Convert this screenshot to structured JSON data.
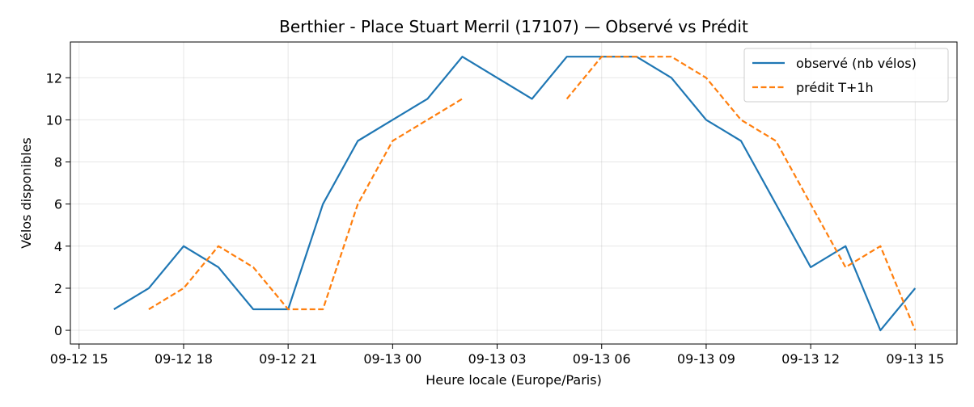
{
  "chart_data": {
    "type": "line",
    "title": "Berthier - Place Stuart Merril (17107) — Observé vs Prédit",
    "xlabel": "Heure locale (Europe/Paris)",
    "ylabel": "Vélos disponibles",
    "x_ticks": [
      {
        "hour": 15,
        "label": "09-12 15"
      },
      {
        "hour": 18,
        "label": "09-12 18"
      },
      {
        "hour": 21,
        "label": "09-12 21"
      },
      {
        "hour": 24,
        "label": "09-13 00"
      },
      {
        "hour": 27,
        "label": "09-13 03"
      },
      {
        "hour": 30,
        "label": "09-13 06"
      },
      {
        "hour": 33,
        "label": "09-13 09"
      },
      {
        "hour": 36,
        "label": "09-13 12"
      },
      {
        "hour": 39,
        "label": "09-13 15"
      }
    ],
    "y_ticks": [
      0,
      2,
      4,
      6,
      8,
      10,
      12
    ],
    "xlim": [
      14.75,
      40.2
    ],
    "ylim": [
      -0.65,
      13.7
    ],
    "grid": true,
    "legend_position": "top-right",
    "series": [
      {
        "name": "observé (nb vélos)",
        "color": "#1f77b4",
        "style": "solid",
        "points": [
          [
            16,
            1
          ],
          [
            17,
            2
          ],
          [
            18,
            4
          ],
          [
            19,
            3
          ],
          [
            20,
            1
          ],
          [
            21,
            1
          ],
          [
            22,
            6
          ],
          [
            23,
            9
          ],
          [
            24,
            10
          ],
          [
            25,
            11
          ],
          [
            26,
            13
          ],
          [
            27,
            12
          ],
          [
            28,
            11
          ],
          [
            29,
            13
          ],
          [
            30,
            13
          ],
          [
            31,
            13
          ],
          [
            32,
            12
          ],
          [
            33,
            10
          ],
          [
            34,
            9
          ],
          [
            35,
            6
          ],
          [
            36,
            3
          ],
          [
            37,
            4
          ],
          [
            38,
            0
          ],
          [
            39,
            2
          ]
        ]
      },
      {
        "name": "prédit T+1h",
        "color": "#ff7f0e",
        "style": "dashed",
        "points": [
          [
            17,
            1
          ],
          [
            18,
            2
          ],
          [
            19,
            4
          ],
          [
            20,
            3
          ],
          [
            21,
            1
          ],
          [
            22,
            1
          ],
          [
            23,
            6
          ],
          [
            24,
            9
          ],
          [
            25,
            10
          ],
          [
            26,
            11
          ],
          null,
          [
            29,
            11
          ],
          [
            30,
            13
          ],
          [
            31,
            13
          ],
          [
            32,
            13
          ],
          [
            33,
            12
          ],
          [
            34,
            10
          ],
          [
            35,
            9
          ],
          [
            36,
            6
          ],
          [
            37,
            3
          ],
          [
            38,
            4
          ],
          [
            39,
            0
          ]
        ]
      }
    ]
  }
}
